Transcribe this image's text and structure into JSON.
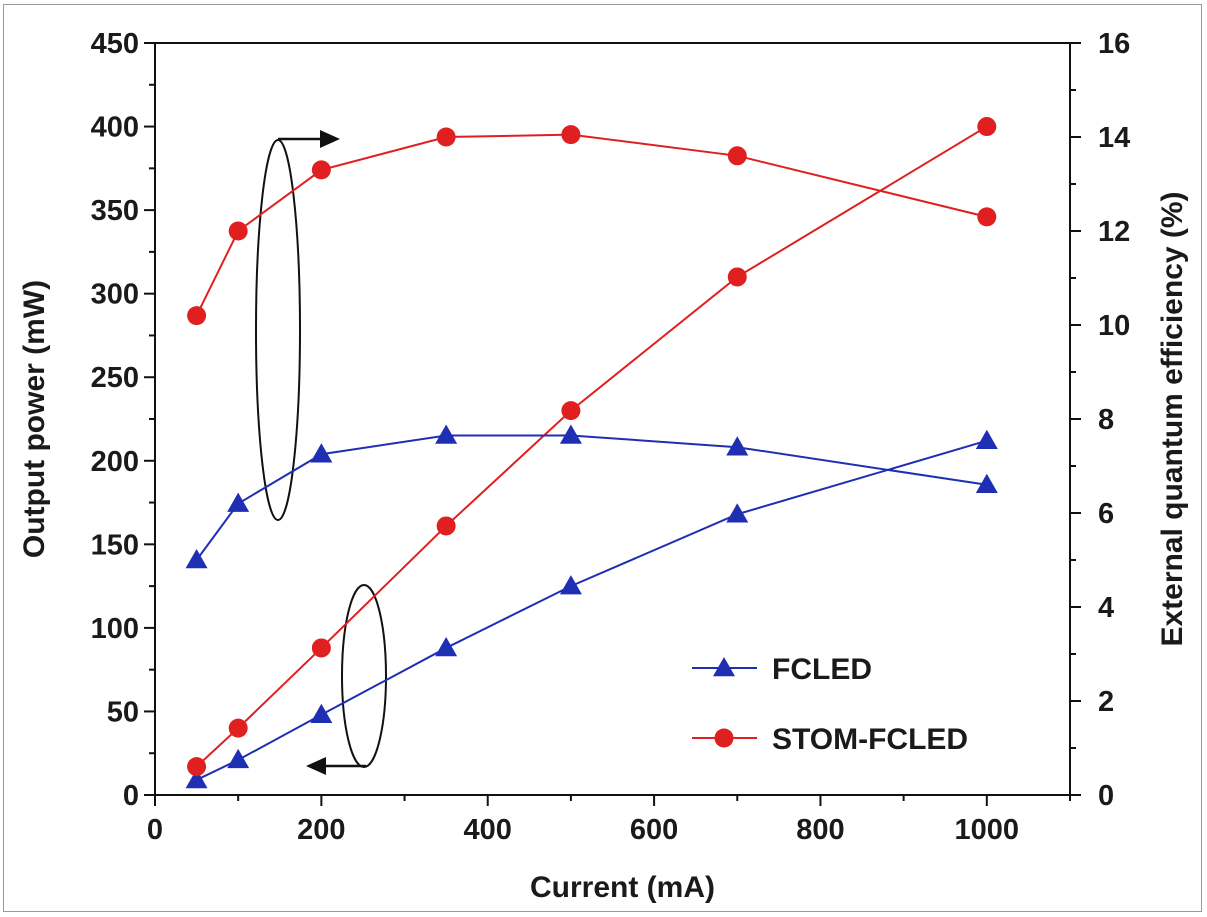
{
  "chart_data": {
    "type": "line",
    "xlabel": "Current (mA)",
    "ylabel_left": "Output power (mW)",
    "ylabel_right": "External quantum efficiency (%)",
    "xlim": [
      0,
      1100
    ],
    "ylim_left": [
      0,
      450
    ],
    "ylim_right": [
      0,
      16
    ],
    "x_ticks": [
      0,
      200,
      400,
      600,
      800,
      1000
    ],
    "y_left_ticks": [
      0,
      50,
      100,
      150,
      200,
      250,
      300,
      350,
      400,
      450
    ],
    "y_right_ticks": [
      0,
      2,
      4,
      6,
      8,
      10,
      12,
      14,
      16
    ],
    "grid": false,
    "legend_placement": "bottom-right",
    "x": [
      50,
      100,
      200,
      350,
      500,
      700,
      1000
    ],
    "series": [
      {
        "name": "FCLED",
        "quantity": "power",
        "axis": "left",
        "marker": "triangle",
        "color": "#1f2fb3",
        "values": [
          9,
          21,
          48,
          88,
          125,
          168,
          212
        ]
      },
      {
        "name": "STOM-FCLED",
        "quantity": "power",
        "axis": "left",
        "marker": "circle",
        "color": "#e02020",
        "values": [
          17,
          40,
          88,
          161,
          230,
          310,
          400
        ]
      },
      {
        "name": "FCLED",
        "quantity": "eqe",
        "axis": "right",
        "marker": "triangle",
        "color": "#1f2fb3",
        "values": [
          5.0,
          6.2,
          7.25,
          7.65,
          7.65,
          7.4,
          6.6
        ]
      },
      {
        "name": "STOM-FCLED",
        "quantity": "eqe",
        "axis": "right",
        "marker": "circle",
        "color": "#e02020",
        "values": [
          10.2,
          12.0,
          13.3,
          14.0,
          14.05,
          13.6,
          12.3
        ]
      }
    ],
    "legend": [
      {
        "label": "FCLED",
        "marker": "triangle",
        "color": "#1f2fb3"
      },
      {
        "label": "STOM-FCLED",
        "marker": "circle",
        "color": "#e02020"
      }
    ]
  }
}
